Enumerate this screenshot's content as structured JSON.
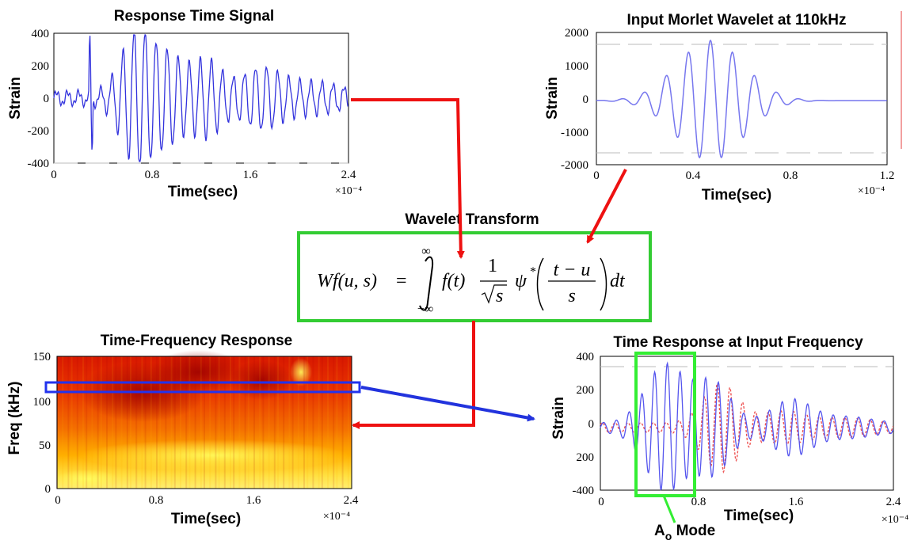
{
  "response_signal": {
    "title": "Response Time Signal",
    "y_label": "Strain",
    "x_label": "Time(sec)",
    "exponent": "×10⁻⁴",
    "y_ticks": [
      "400",
      "200",
      "0",
      "-200",
      "-400"
    ],
    "x_ticks": [
      "0",
      "0.8",
      "1.6",
      "2.4"
    ],
    "line_color": "#3333dd"
  },
  "morlet": {
    "title": "Input Morlet Wavelet at 110kHz",
    "y_label": "Strain",
    "x_label": "Time(sec)",
    "exponent": "×10⁻⁴",
    "y_ticks": [
      "2000",
      "1000",
      "0",
      "-1000",
      "-2000"
    ],
    "x_ticks": [
      "0",
      "0.4",
      "0.8",
      "1.2"
    ],
    "line_color": "#7777ee"
  },
  "transform": {
    "title": "Wavelet Transform",
    "box_color": "#33cc33",
    "formula": {
      "lhs": "Wf(u, s)",
      "eq": "=",
      "upper": "∞",
      "lower": "−∞",
      "f": "f(t)",
      "one": "1",
      "s": "s",
      "psi": "ψ",
      "star": "*",
      "num": "t − u",
      "den": "s",
      "dt": "dt"
    }
  },
  "tf_response": {
    "title": "Time-Frequency Response",
    "y_label": "Freq (kHz)",
    "x_label": "Time(sec)",
    "exponent": "×10⁻⁴",
    "y_ticks": [
      "150",
      "100",
      "50",
      "0"
    ],
    "x_ticks": [
      "0",
      "0.8",
      "1.6",
      "2.4"
    ],
    "highlight_color": "#2233ee"
  },
  "input_freq": {
    "title": "Time Response at Input Frequency",
    "y_label": "Strain",
    "x_label": "Time(sec)",
    "exponent": "×10⁻⁴",
    "y_ticks": [
      "400",
      "200",
      "0",
      "200",
      "-400"
    ],
    "x_ticks": [
      "0",
      "0.8",
      "1.6",
      "2.4"
    ],
    "mode_label": "A",
    "mode_sub": "o",
    "mode_word": " Mode",
    "mode_color": "#33ee33"
  },
  "arrows": {
    "red": "#ee1111",
    "blue": "#2233dd"
  }
}
